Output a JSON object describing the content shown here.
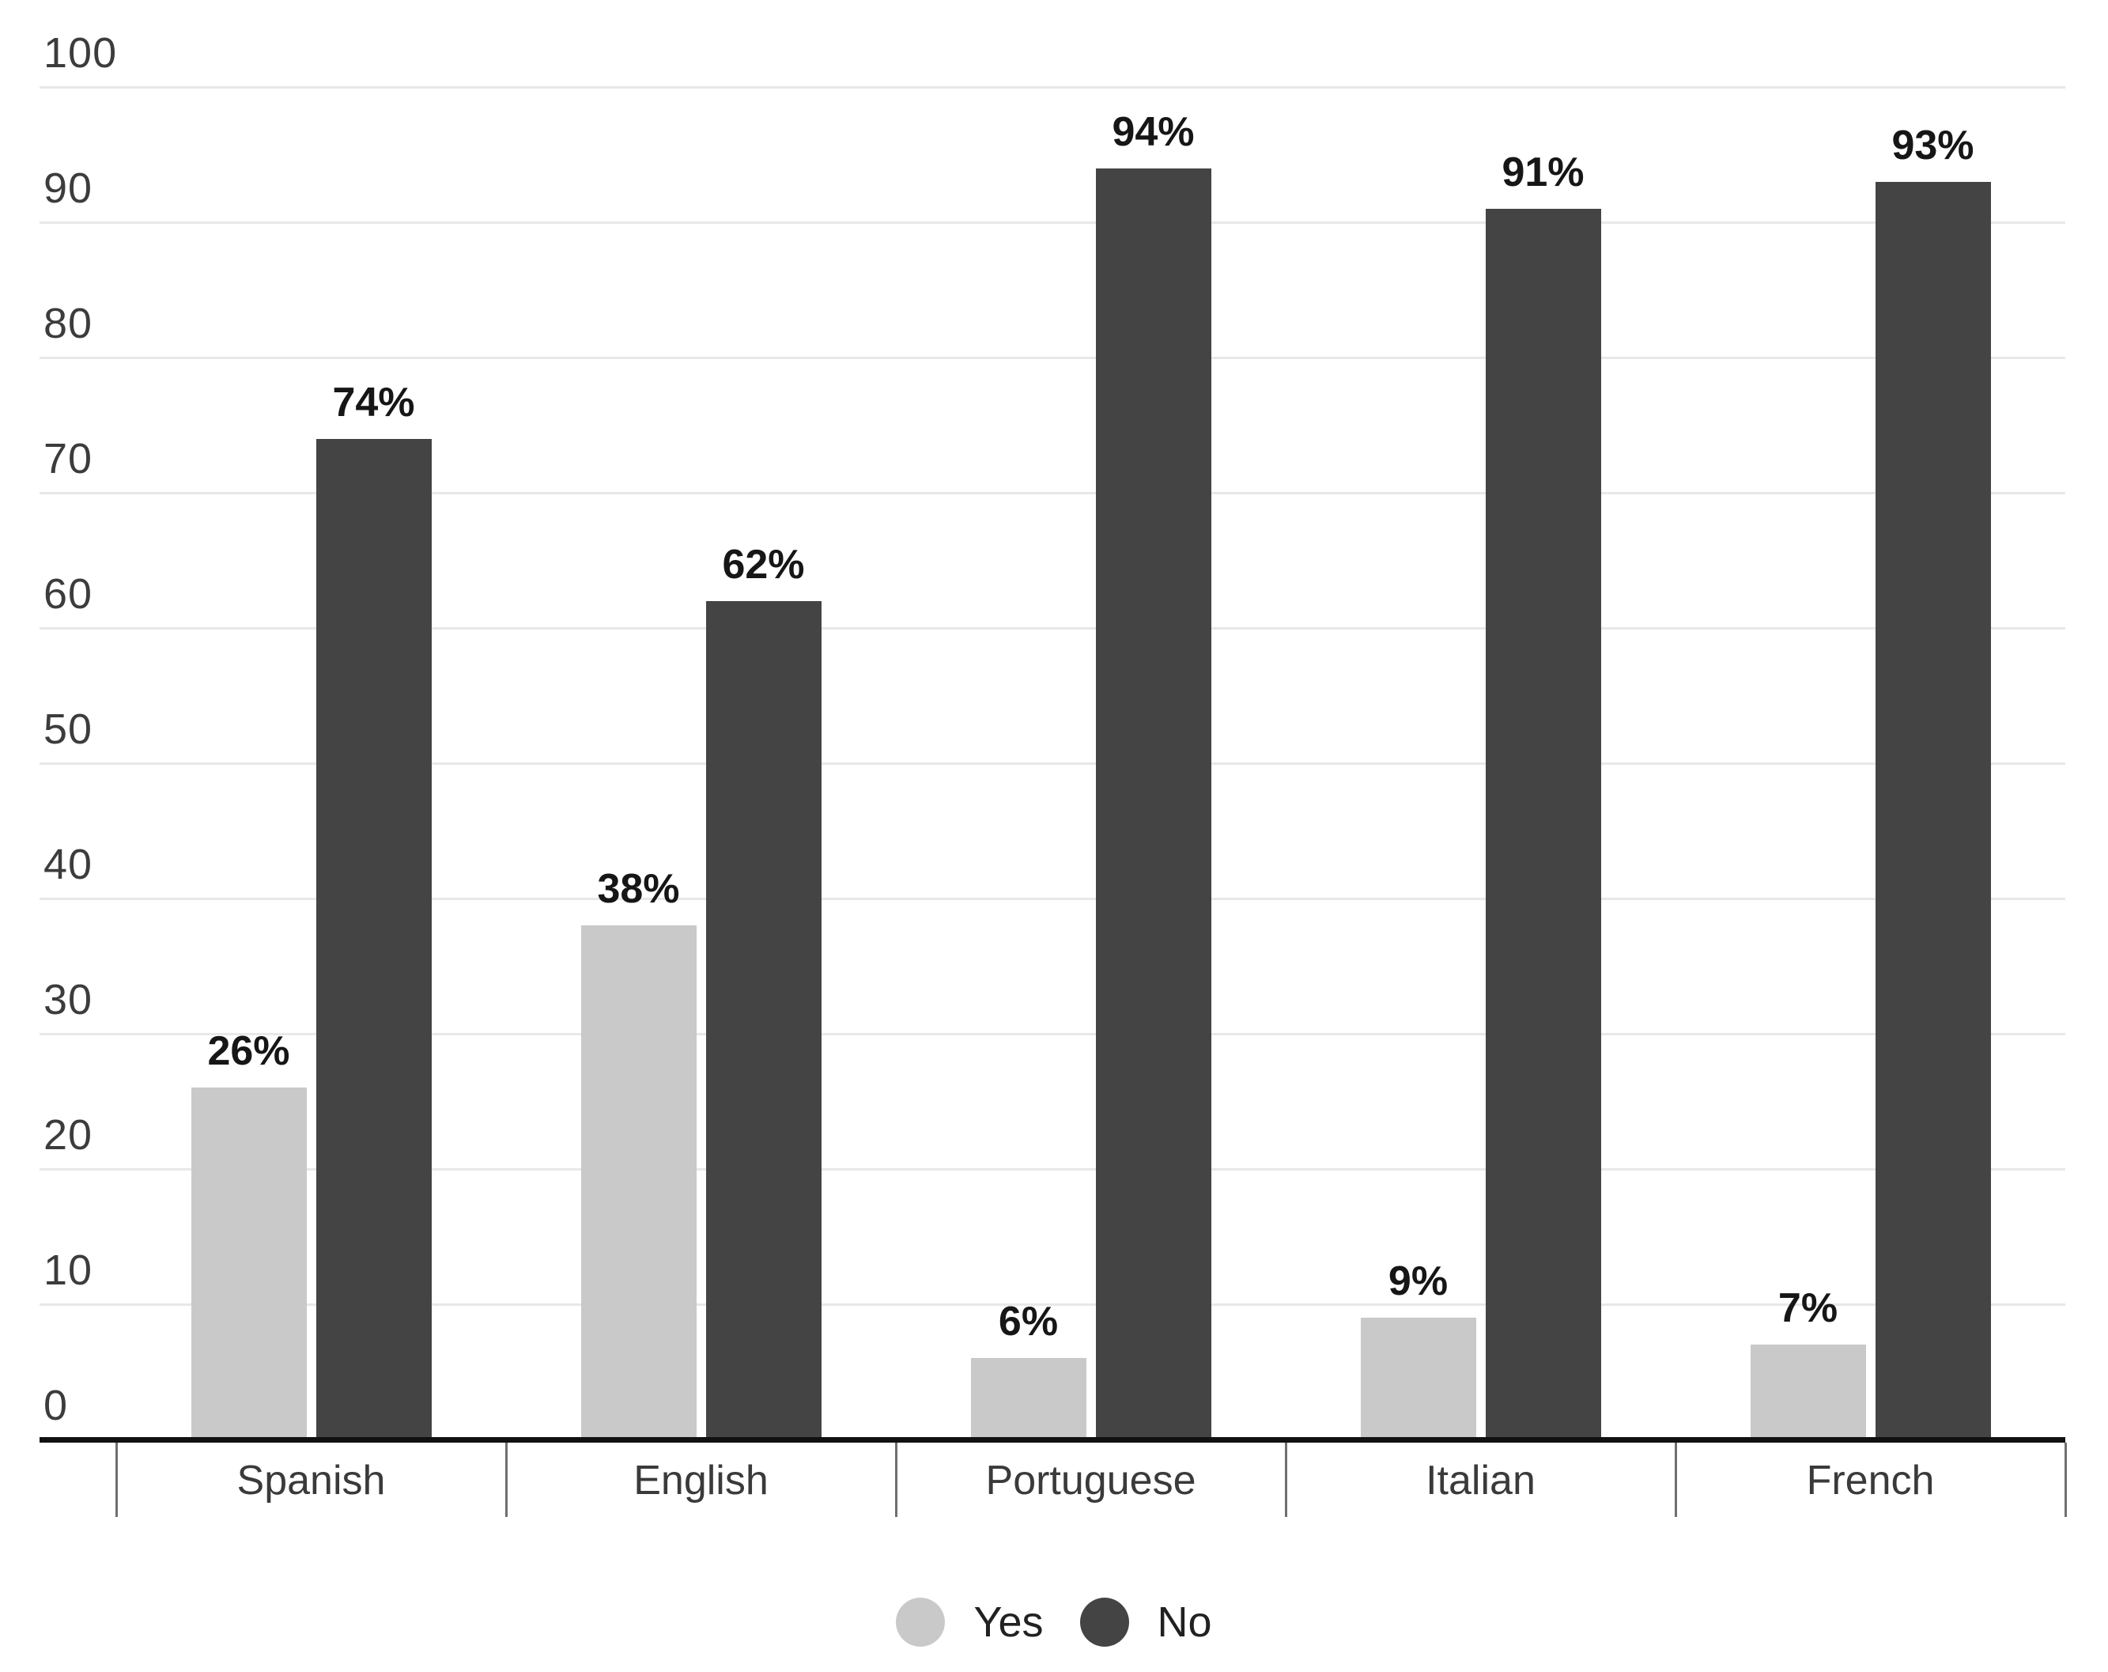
{
  "chart_data": {
    "type": "bar",
    "title": "",
    "xlabel": "",
    "ylabel": "",
    "categories": [
      "Spanish",
      "English",
      "Portuguese",
      "Italian",
      "French"
    ],
    "series": [
      {
        "name": "Yes",
        "color": "#c9c9c9",
        "values": [
          26,
          38,
          6,
          9,
          7
        ]
      },
      {
        "name": "No",
        "color": "#444444",
        "values": [
          74,
          62,
          94,
          91,
          93
        ]
      }
    ],
    "value_suffix": "%",
    "ylim": [
      0,
      100
    ],
    "yticks": [
      0,
      10,
      20,
      30,
      40,
      50,
      60,
      70,
      80,
      90,
      100
    ],
    "grid": true,
    "legend_position": "bottom"
  },
  "colors": {
    "background": "#ffffff",
    "gridline": "#e8e8e8",
    "axis_line": "#111111",
    "tick_line": "#6f6f6f",
    "axis_label": "#3c3c3c",
    "category_label": "#3a3a3a",
    "value_label": "#161616",
    "legend_label": "#212121"
  }
}
